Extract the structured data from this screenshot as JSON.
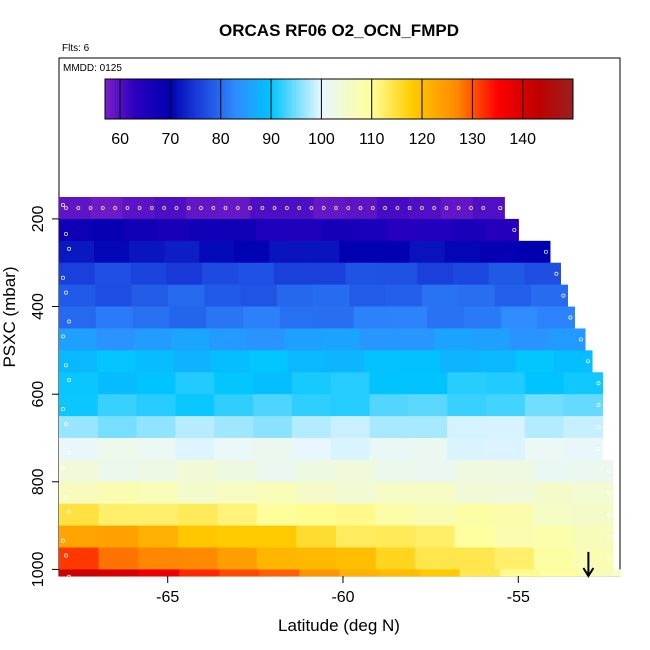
{
  "chart_data": {
    "type": "heatmap",
    "title": "ORCAS RF06 O2_OCN_FMPD",
    "flights_note": "Flts: 6",
    "date_note": "MMDD: 0125",
    "xlabel": "Latitude (deg N)",
    "ylabel": "PSXC (mbar)",
    "xlim": [
      -68.1,
      -52.1
    ],
    "ylim": [
      1015,
      100
    ],
    "x_ticks": [
      -65,
      -60,
      -55
    ],
    "x_tick_labels": [
      "-65",
      "-60",
      "-55"
    ],
    "y_ticks": [
      200,
      400,
      600,
      800,
      1000
    ],
    "y_tick_labels": [
      "200",
      "400",
      "600",
      "800",
      "1000"
    ],
    "colorbar": {
      "range": [
        57,
        150
      ],
      "ticks": [
        60,
        70,
        80,
        90,
        100,
        110,
        120,
        130,
        140
      ],
      "tick_labels": [
        "60",
        "70",
        "80",
        "90",
        "100",
        "110",
        "120",
        "130",
        "140"
      ],
      "palette": [
        "#7a1fc8",
        "#2a00c0",
        "#0000b0",
        "#1838d8",
        "#2f8cff",
        "#00c4ff",
        "#e8f7ff",
        "#ffff99",
        "#ffcc00",
        "#ff8800",
        "#ff0000",
        "#c00000",
        "#9a1f1f"
      ],
      "palette_stops": [
        57,
        63,
        70,
        75,
        83,
        90,
        100,
        110,
        118,
        127,
        135,
        143,
        150
      ]
    },
    "levels": [
      {
        "p_top": 150,
        "p_bot": 200,
        "lat_min": -68.1,
        "lat_max": -55.4,
        "lat_break": -63.5,
        "val_south": 59,
        "val_north": 60
      },
      {
        "p_top": 200,
        "p_bot": 250,
        "lat_min": -68.1,
        "lat_max": -55.0,
        "lat_break": -62.5,
        "val_south": 68,
        "val_north": 64
      },
      {
        "p_top": 250,
        "p_bot": 300,
        "lat_min": -68.1,
        "lat_max": -54.1,
        "lat_break": -63.5,
        "val_south": 72,
        "val_north": 70
      },
      {
        "p_top": 300,
        "p_bot": 350,
        "lat_min": -68.1,
        "lat_max": -53.8,
        "lat_break": -63.5,
        "val_south": 76,
        "val_north": 77
      },
      {
        "p_top": 350,
        "p_bot": 400,
        "lat_min": -68.1,
        "lat_max": -53.6,
        "lat_break": -63.5,
        "val_south": 78,
        "val_north": 80
      },
      {
        "p_top": 400,
        "p_bot": 450,
        "lat_min": -68.1,
        "lat_max": -53.4,
        "lat_break": -63.5,
        "val_south": 80,
        "val_north": 82
      },
      {
        "p_top": 450,
        "p_bot": 500,
        "lat_min": -68.1,
        "lat_max": -53.1,
        "lat_break": -63.5,
        "val_south": 85,
        "val_north": 85
      },
      {
        "p_top": 500,
        "p_bot": 550,
        "lat_min": -68.1,
        "lat_max": -52.9,
        "lat_break": -63.5,
        "val_south": 89,
        "val_north": 89
      },
      {
        "p_top": 550,
        "p_bot": 600,
        "lat_min": -68.1,
        "lat_max": -52.6,
        "lat_break": -63.5,
        "val_south": 90,
        "val_north": 91
      },
      {
        "p_top": 600,
        "p_bot": 650,
        "lat_min": -68.1,
        "lat_max": -52.6,
        "lat_break": -63.5,
        "val_south": 91,
        "val_north": 94
      },
      {
        "p_top": 650,
        "p_bot": 700,
        "lat_min": -68.1,
        "lat_max": -52.6,
        "lat_break": -63.5,
        "val_south": 96,
        "val_north": 99
      },
      {
        "p_top": 700,
        "p_bot": 750,
        "lat_min": -68.1,
        "lat_max": -52.6,
        "lat_break": -63.5,
        "val_south": 101,
        "val_north": 100
      },
      {
        "p_top": 750,
        "p_bot": 800,
        "lat_min": -68.1,
        "lat_max": -52.3,
        "lat_break": -63.5,
        "val_south": 103,
        "val_north": 102
      },
      {
        "p_top": 800,
        "p_bot": 850,
        "lat_min": -68.1,
        "lat_max": -52.3,
        "lat_break": -63.5,
        "val_south": 107,
        "val_north": 104
      },
      {
        "p_top": 850,
        "p_bot": 900,
        "lat_min": -68.1,
        "lat_max": -52.3,
        "lat_break": -63.5,
        "val_south": 114,
        "val_north": 106
      },
      {
        "p_top": 900,
        "p_bot": 950,
        "lat_min": -68.1,
        "lat_max": -52.3,
        "lat_break": -63.5,
        "val_south": 124,
        "val_north": 106
      },
      {
        "p_top": 950,
        "p_bot": 1000,
        "lat_min": -68.1,
        "lat_max": -52.3,
        "lat_break": -63.5,
        "val_south": 131,
        "val_north": 108
      },
      {
        "p_top": 1000,
        "p_bot": 1015,
        "lat_min": -68.1,
        "lat_max": -52.1,
        "lat_break": -63.5,
        "val_south": 142,
        "val_north": 106
      }
    ],
    "arrow": {
      "lat": -53.0,
      "p_from": 960,
      "p_to": 1015
    },
    "grid": false
  }
}
